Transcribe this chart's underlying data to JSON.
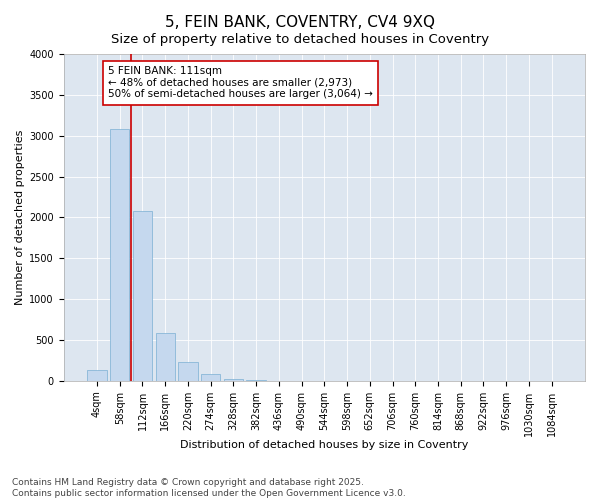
{
  "title": "5, FEIN BANK, COVENTRY, CV4 9XQ",
  "subtitle": "Size of property relative to detached houses in Coventry",
  "xlabel": "Distribution of detached houses by size in Coventry",
  "ylabel": "Number of detached properties",
  "categories": [
    "4sqm",
    "58sqm",
    "112sqm",
    "166sqm",
    "220sqm",
    "274sqm",
    "328sqm",
    "382sqm",
    "436sqm",
    "490sqm",
    "544sqm",
    "598sqm",
    "652sqm",
    "706sqm",
    "760sqm",
    "814sqm",
    "868sqm",
    "922sqm",
    "976sqm",
    "1030sqm",
    "1084sqm"
  ],
  "values": [
    130,
    3080,
    2080,
    580,
    230,
    80,
    25,
    5,
    2,
    2,
    1,
    0,
    0,
    0,
    0,
    0,
    0,
    0,
    0,
    0,
    0
  ],
  "bar_color": "#c5d8ee",
  "bar_edgecolor": "#7aafd4",
  "vline_x_index": 2,
  "vline_color": "#cc0000",
  "annotation_text": "5 FEIN BANK: 111sqm\n← 48% of detached houses are smaller (2,973)\n50% of semi-detached houses are larger (3,064) →",
  "annotation_box_facecolor": "#ffffff",
  "annotation_box_edgecolor": "#cc0000",
  "ylim": [
    0,
    4000
  ],
  "yticks": [
    0,
    500,
    1000,
    1500,
    2000,
    2500,
    3000,
    3500,
    4000
  ],
  "background_color": "#dde6f0",
  "footer_line1": "Contains HM Land Registry data © Crown copyright and database right 2025.",
  "footer_line2": "Contains public sector information licensed under the Open Government Licence v3.0.",
  "title_fontsize": 11,
  "subtitle_fontsize": 9.5,
  "xlabel_fontsize": 8,
  "ylabel_fontsize": 8,
  "tick_fontsize": 7,
  "annotation_fontsize": 7.5,
  "footer_fontsize": 6.5
}
